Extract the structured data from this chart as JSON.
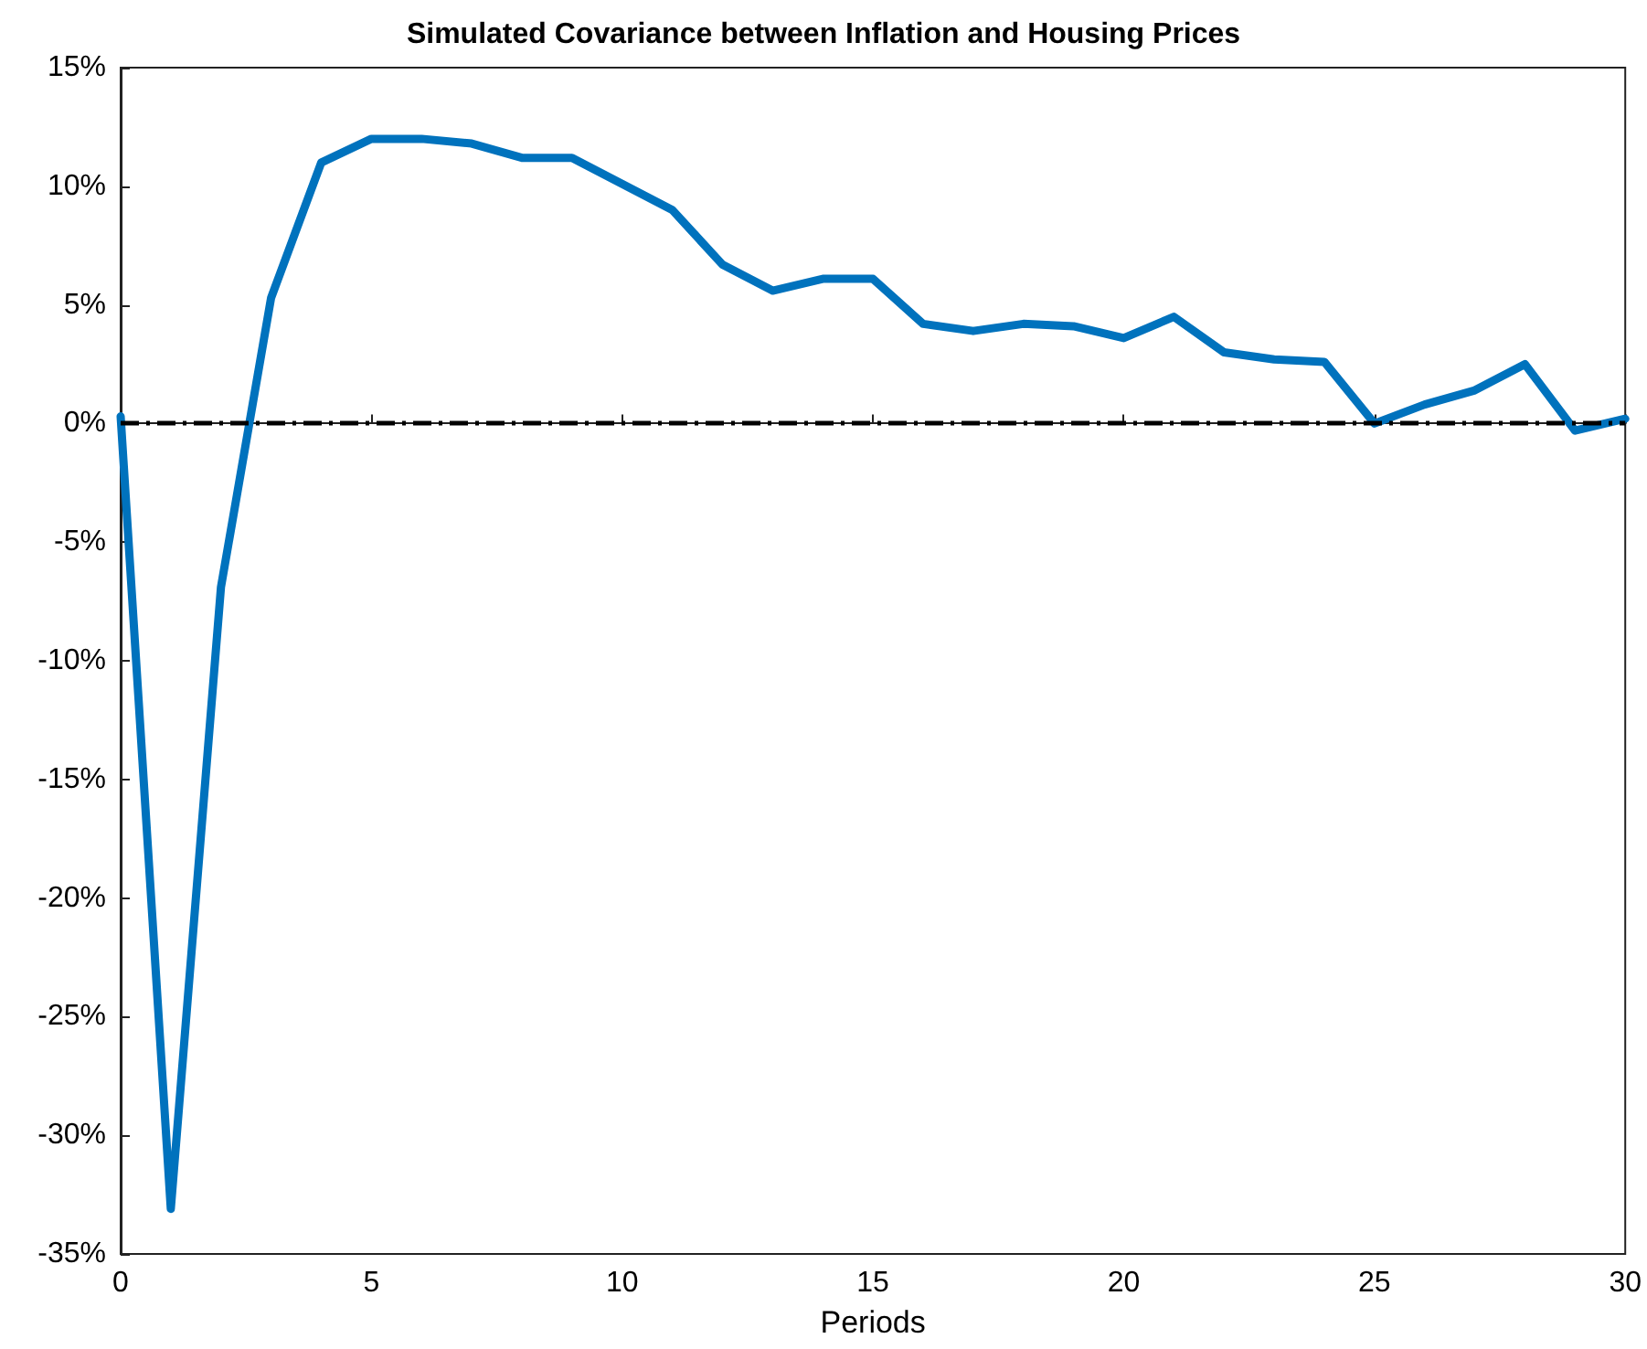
{
  "chart_data": {
    "type": "line",
    "title": "Simulated Covariance between Inflation and Housing Prices",
    "xlabel": "Periods",
    "x": [
      0,
      1,
      2,
      3,
      4,
      5,
      6,
      7,
      8,
      9,
      10,
      11,
      12,
      13,
      14,
      15,
      16,
      17,
      18,
      19,
      20,
      21,
      22,
      23,
      24,
      25,
      26,
      27,
      28,
      29,
      30
    ],
    "series": [
      {
        "color": "#0072bd",
        "values": [
          0.3,
          -33.1,
          -6.9,
          5.3,
          11.0,
          12.0,
          12.0,
          11.8,
          11.2,
          11.2,
          10.1,
          9.0,
          6.7,
          5.6,
          6.1,
          6.1,
          4.2,
          3.9,
          4.2,
          4.1,
          3.6,
          4.5,
          3.0,
          2.7,
          2.6,
          0,
          0.8,
          1.4,
          2.5,
          -0.3,
          0.2
        ]
      }
    ],
    "xlim": [
      0,
      30
    ],
    "xticks": [
      0,
      5,
      10,
      15,
      20,
      25,
      30
    ],
    "ylim": [
      -35,
      15
    ],
    "yticks": [
      {
        "value": -35,
        "label": "-35%"
      },
      {
        "value": -30,
        "label": "-30%"
      },
      {
        "value": -25,
        "label": "-25%"
      },
      {
        "value": -20,
        "label": "-20%"
      },
      {
        "value": -15,
        "label": "-15%"
      },
      {
        "value": -10,
        "label": "-10%"
      },
      {
        "value": -5,
        "label": "-5%"
      },
      {
        "value": 0,
        "label": "0%"
      },
      {
        "value": 5,
        "label": "5%"
      },
      {
        "value": 10,
        "label": "10%"
      },
      {
        "value": 15,
        "label": "15%"
      }
    ],
    "ref_lines": [
      {
        "axis": "y",
        "value": 0,
        "color": "#000000",
        "line_style": "dashdot"
      }
    ],
    "grid": false,
    "marker": "none",
    "line_style": "solid"
  }
}
